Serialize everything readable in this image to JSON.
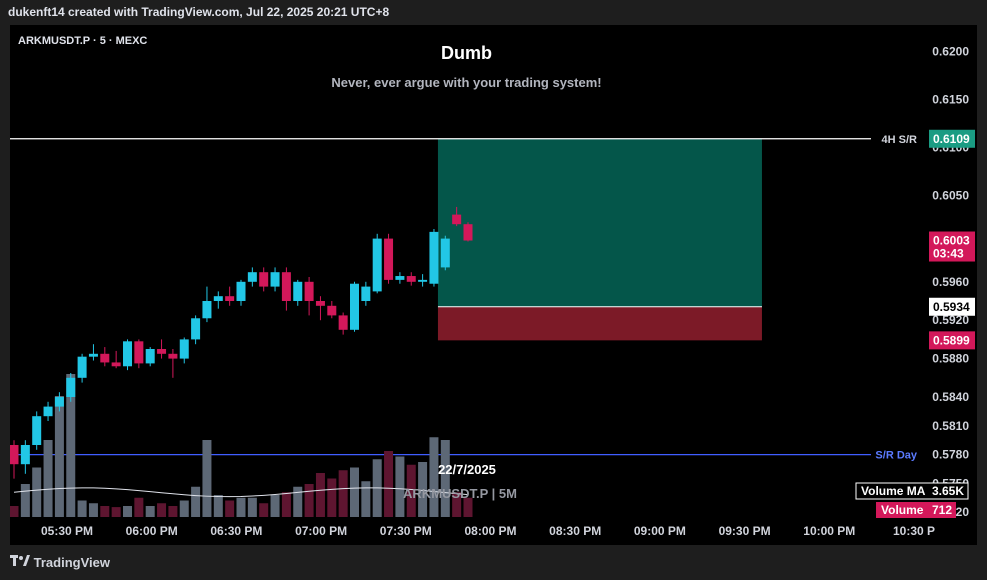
{
  "header": {
    "credit": "dukenft14 created with TradingView.com, Jul 22, 2025 20:21 UTC+8"
  },
  "symbol_line": "ARKMUSDT.P · 5 · MEXC",
  "title": "Dumb",
  "subtitle": "Never, ever argue with your trading system!",
  "date_label": "22/7/2025",
  "watermark": "ARKMUSDT.P | 5M",
  "footer": {
    "brand": "TradingView"
  },
  "colors": {
    "up": "#22c7e6",
    "down": "#d3185a",
    "up_vol": "#5d6876",
    "down_vol": "#5e1530",
    "target_zone": "#04564a",
    "stop_zone": "#7c1a27",
    "sr_day": "#3f5dff",
    "hline": "#ffffff",
    "bg": "#000000"
  },
  "chart_data": {
    "type": "candlestick",
    "symbol": "ARKMUSDT.P",
    "timeframe": "5",
    "exchange": "MEXC",
    "date": "22/7/2025",
    "ylim": [
      0.5715,
      0.6215
    ],
    "y_ticks": [
      "0.6200",
      "0.6150",
      "0.6100",
      "0.6050",
      "0.5960",
      "0.5920",
      "0.5880",
      "0.5840",
      "0.5810",
      "0.5780",
      "0.5750",
      "0.5720"
    ],
    "x_ticks": [
      "05:30 PM",
      "06:00 PM",
      "06:30 PM",
      "07:00 PM",
      "07:30 PM",
      "08:00 PM",
      "08:30 PM",
      "09:00 PM",
      "09:30 PM",
      "10:00 PM",
      "10:30 P"
    ],
    "candles": [
      {
        "o": 0.579,
        "h": 0.5795,
        "l": 0.5755,
        "c": 0.577
      },
      {
        "o": 0.577,
        "h": 0.5795,
        "l": 0.576,
        "c": 0.579
      },
      {
        "o": 0.579,
        "h": 0.5825,
        "l": 0.5785,
        "c": 0.582
      },
      {
        "o": 0.582,
        "h": 0.5835,
        "l": 0.5815,
        "c": 0.583
      },
      {
        "o": 0.583,
        "h": 0.5845,
        "l": 0.5825,
        "c": 0.584
      },
      {
        "o": 0.584,
        "h": 0.5865,
        "l": 0.5835,
        "c": 0.586
      },
      {
        "o": 0.586,
        "h": 0.5885,
        "l": 0.5855,
        "c": 0.5882
      },
      {
        "o": 0.5882,
        "h": 0.5895,
        "l": 0.5878,
        "c": 0.5885
      },
      {
        "o": 0.5885,
        "h": 0.5892,
        "l": 0.5872,
        "c": 0.5876
      },
      {
        "o": 0.5876,
        "h": 0.5888,
        "l": 0.587,
        "c": 0.5872
      },
      {
        "o": 0.5872,
        "h": 0.59,
        "l": 0.5868,
        "c": 0.5898
      },
      {
        "o": 0.5898,
        "h": 0.59,
        "l": 0.587,
        "c": 0.5875
      },
      {
        "o": 0.5875,
        "h": 0.5892,
        "l": 0.5872,
        "c": 0.589
      },
      {
        "o": 0.589,
        "h": 0.59,
        "l": 0.588,
        "c": 0.5885
      },
      {
        "o": 0.5885,
        "h": 0.589,
        "l": 0.586,
        "c": 0.588
      },
      {
        "o": 0.588,
        "h": 0.5902,
        "l": 0.5875,
        "c": 0.59
      },
      {
        "o": 0.59,
        "h": 0.5925,
        "l": 0.5895,
        "c": 0.5922
      },
      {
        "o": 0.5922,
        "h": 0.5955,
        "l": 0.5918,
        "c": 0.594
      },
      {
        "o": 0.594,
        "h": 0.595,
        "l": 0.5932,
        "c": 0.5945
      },
      {
        "o": 0.5945,
        "h": 0.5955,
        "l": 0.5935,
        "c": 0.594
      },
      {
        "o": 0.594,
        "h": 0.5962,
        "l": 0.5935,
        "c": 0.596
      },
      {
        "o": 0.596,
        "h": 0.5975,
        "l": 0.5955,
        "c": 0.597
      },
      {
        "o": 0.597,
        "h": 0.5975,
        "l": 0.595,
        "c": 0.5955
      },
      {
        "o": 0.5955,
        "h": 0.5975,
        "l": 0.595,
        "c": 0.597
      },
      {
        "o": 0.597,
        "h": 0.5975,
        "l": 0.593,
        "c": 0.594
      },
      {
        "o": 0.594,
        "h": 0.5962,
        "l": 0.5935,
        "c": 0.596
      },
      {
        "o": 0.596,
        "h": 0.5965,
        "l": 0.5925,
        "c": 0.594
      },
      {
        "o": 0.594,
        "h": 0.5945,
        "l": 0.592,
        "c": 0.5935
      },
      {
        "o": 0.5935,
        "h": 0.594,
        "l": 0.5922,
        "c": 0.5925
      },
      {
        "o": 0.5925,
        "h": 0.5928,
        "l": 0.5905,
        "c": 0.591
      },
      {
        "o": 0.591,
        "h": 0.596,
        "l": 0.5908,
        "c": 0.5958
      },
      {
        "o": 0.594,
        "h": 0.596,
        "l": 0.5935,
        "c": 0.5955
      },
      {
        "o": 0.595,
        "h": 0.601,
        "l": 0.5948,
        "c": 0.6005
      },
      {
        "o": 0.6005,
        "h": 0.601,
        "l": 0.5958,
        "c": 0.5962
      },
      {
        "o": 0.5962,
        "h": 0.597,
        "l": 0.5958,
        "c": 0.5966
      },
      {
        "o": 0.5966,
        "h": 0.597,
        "l": 0.5956,
        "c": 0.596
      },
      {
        "o": 0.596,
        "h": 0.5968,
        "l": 0.5955,
        "c": 0.5962
      },
      {
        "o": 0.5958,
        "h": 0.6015,
        "l": 0.5955,
        "c": 0.6012
      },
      {
        "o": 0.5975,
        "h": 0.6008,
        "l": 0.5972,
        "c": 0.6005
      },
      {
        "o": 0.603,
        "h": 0.6038,
        "l": 0.6018,
        "c": 0.602
      },
      {
        "o": 0.602,
        "h": 0.6022,
        "l": 0.6002,
        "c": 0.6003
      }
    ],
    "volume": [
      0.2,
      0.6,
      0.9,
      1.4,
      2.2,
      2.6,
      0.3,
      0.25,
      0.2,
      0.18,
      0.2,
      0.35,
      0.2,
      0.25,
      0.2,
      0.3,
      0.55,
      1.4,
      0.4,
      0.3,
      0.35,
      0.35,
      0.25,
      0.4,
      0.45,
      0.55,
      0.6,
      0.8,
      0.7,
      0.85,
      0.9,
      0.65,
      1.05,
      1.2,
      1.1,
      0.95,
      1.0,
      1.45,
      1.4,
      0.45,
      0.35
    ],
    "volume_ma": {
      "label": "Volume MA",
      "value": "3.65K"
    },
    "volume_last": {
      "label": "Volume",
      "value": "712"
    },
    "horizontal_lines": [
      {
        "label": "4H S/R",
        "price": "0.6109"
      },
      {
        "label": "S/R Day",
        "price": "0.5780"
      }
    ],
    "position": {
      "target": 0.6109,
      "entry": 0.5934,
      "stop": 0.5899,
      "entry_label": "0.5934",
      "stop_label": "0.5899"
    },
    "last_price": {
      "value": "0.6003",
      "countdown": "03:43"
    }
  }
}
